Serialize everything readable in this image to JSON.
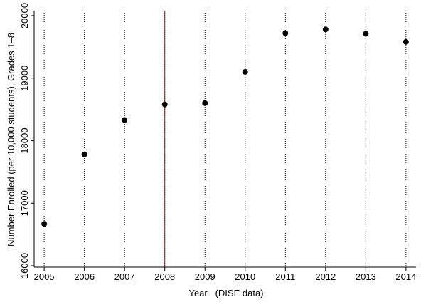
{
  "chart_data": {
    "type": "scatter",
    "x_label": "Year   (DISE data)",
    "y_label": "Number Enrolled (per 10,000 students), Grades 1–8",
    "x": [
      2005,
      2006,
      2007,
      2008,
      2009,
      2010,
      2011,
      2012,
      2013,
      2014
    ],
    "values": [
      16670,
      17780,
      18330,
      18580,
      18600,
      19100,
      19720,
      19780,
      19710,
      19580
    ],
    "color": "#000000",
    "xlim": [
      2004.75,
      2014.25
    ],
    "xticks": [
      2005,
      2006,
      2007,
      2008,
      2009,
      2010,
      2011,
      2012,
      2013,
      2014
    ],
    "ylim": [
      16000,
      20000
    ],
    "yticks": [
      16000,
      17000,
      18000,
      19000,
      20000
    ],
    "grid": true,
    "vline": 2008,
    "vline_color": "#8b1a1a"
  }
}
